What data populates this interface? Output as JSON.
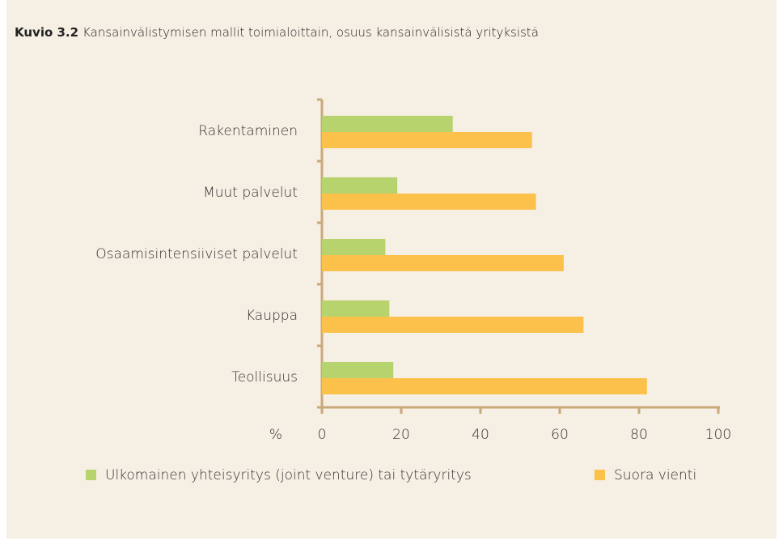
{
  "chart_data": {
    "type": "hbar",
    "title_label": "Kuvio 3.2",
    "title": "Kansainvälistymisen mallit toimialoittain, osuus kansainvälisistä yrityksistä",
    "x_label": "%",
    "categories": [
      "Rakentaminen",
      "Muut palvelut",
      "Osaamisintensiiviset palvelut",
      "Kauppa",
      "Teollisuus"
    ],
    "series": [
      {
        "name": "Ulkomainen yhteisyritys (joint venture) tai tytäryritys",
        "color": "#b7d36d",
        "values": [
          33,
          19,
          16,
          17,
          18
        ]
      },
      {
        "name": "Suora vienti",
        "color": "#fcc14b",
        "values": [
          53,
          54,
          61,
          66,
          82
        ]
      }
    ],
    "xlim": [
      0,
      100
    ],
    "xticks": [
      0,
      20,
      40,
      60,
      80,
      100
    ]
  }
}
